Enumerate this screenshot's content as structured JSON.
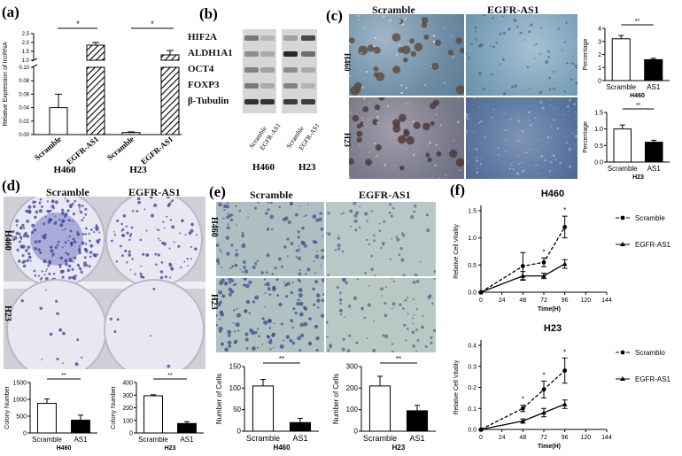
{
  "panels": {
    "a": "(a)",
    "b": "(b)",
    "c": "(c)",
    "d": "(d)",
    "e": "(e)",
    "f": "(f)"
  },
  "panel_a": {
    "ylabel": "Relative Expression of lncRNA",
    "yticks_top": [
      "1.0",
      "1.5",
      "2.0",
      "2.5"
    ],
    "yticks_bottom": [
      "0.00",
      "0.02",
      "0.04",
      "0.06",
      "0.08",
      "0.10"
    ],
    "group_labels": [
      "Scramble",
      "EGFR-AS1",
      "Scramble",
      "EGFR-AS1"
    ],
    "cell_lines": [
      "H460",
      "H23"
    ],
    "sig": [
      "*",
      "*"
    ]
  },
  "panel_b": {
    "proteins": [
      "HIF2A",
      "ALDH1A1",
      "OCT4",
      "FOXP3",
      "β-Tubulin"
    ],
    "lane_labels": [
      "Scramble",
      "EGFR-AS1",
      "Scramble",
      "EGFR-AS1"
    ],
    "cell_lines": [
      "H460",
      "H23"
    ]
  },
  "panel_c": {
    "col_headers": [
      "Scramble",
      "EGFR-AS1"
    ],
    "row_labels": [
      "H460",
      "H23"
    ],
    "chart_top": {
      "ylabel": "Percentage",
      "yticks": [
        "0",
        "1",
        "2",
        "3",
        "4"
      ],
      "categories": [
        "Scramble",
        "AS1"
      ],
      "subtitle": "H460",
      "sig": "**"
    },
    "chart_bottom": {
      "ylabel": "Percentage",
      "yticks": [
        "0.0",
        "0.5",
        "1.0",
        "1.5"
      ],
      "categories": [
        "Scramble",
        "AS1"
      ],
      "subtitle": "H23",
      "sig": "**"
    }
  },
  "panel_d": {
    "col_headers": [
      "Scramble",
      "EGFR-AS1"
    ],
    "row_labels": [
      "H460",
      "H23"
    ],
    "chart_left": {
      "ylabel": "Colony Number",
      "yticks": [
        "0",
        "500",
        "1000",
        "1500"
      ],
      "categories": [
        "Scramble",
        "AS1"
      ],
      "subtitle": "H460",
      "sig": "**"
    },
    "chart_right": {
      "ylabel": "Colony Number",
      "yticks": [
        "0",
        "100",
        "200",
        "300",
        "400"
      ],
      "categories": [
        "Scramble",
        "AS1"
      ],
      "subtitle": "H23",
      "sig": "**"
    }
  },
  "panel_e": {
    "col_headers": [
      "Scramble",
      "EGFR-AS1"
    ],
    "row_labels": [
      "H460",
      "H23"
    ],
    "chart_left": {
      "ylabel": "Number of Cells",
      "yticks": [
        "0",
        "50",
        "100",
        "150"
      ],
      "categories": [
        "Scramble",
        "AS1"
      ],
      "subtitle": "H460",
      "sig": "**"
    },
    "chart_right": {
      "ylabel": "Number of Cells",
      "yticks": [
        "0",
        "100",
        "200",
        "300"
      ],
      "categories": [
        "Scramble",
        "AS1"
      ],
      "subtitle": "H23",
      "sig": "**"
    }
  },
  "panel_f": {
    "top": {
      "title": "H460",
      "ylabel": "Relative Cell Vitality",
      "xlabel": "Time(H)",
      "yticks": [
        "0.0",
        "0.5",
        "1.0",
        "1.5"
      ],
      "xticks": [
        "0",
        "24",
        "48",
        "72",
        "96",
        "120",
        "144"
      ],
      "legend": [
        "Scramble",
        "EGFR-AS1"
      ],
      "stars": [
        "*",
        "*"
      ]
    },
    "bottom": {
      "title": "H23",
      "ylabel": "Relative Cell Vitality",
      "xlabel": "Time(H)",
      "yticks": [
        "0.0",
        "0.1",
        "0.2",
        "0.3",
        "0.4"
      ],
      "xticks": [
        "0",
        "24",
        "48",
        "72",
        "96",
        "120",
        "144"
      ],
      "legend": [
        "Scramblo",
        "EGFR-AS1"
      ],
      "stars": [
        "*",
        "*",
        "*"
      ]
    }
  },
  "chart_data": [
    {
      "type": "bar",
      "id": "a",
      "categories": [
        "Scramble",
        "EGFR-AS1",
        "Scramble",
        "EGFR-AS1"
      ],
      "groups": [
        "H460",
        "H460",
        "H23",
        "H23"
      ],
      "values": [
        0.04,
        1.85,
        0.003,
        1.3
      ],
      "errors": [
        0.02,
        0.15,
        0.001,
        0.25
      ],
      "ylabel": "Relative Expression of lncRNA",
      "broken_axis": true,
      "colors": [
        "#ffffff",
        "hatched",
        "#ffffff",
        "hatched"
      ]
    },
    {
      "type": "bar",
      "id": "c-top",
      "categories": [
        "Scramble",
        "AS1"
      ],
      "values": [
        3.2,
        1.6
      ],
      "errors": [
        0.25,
        0.1
      ],
      "ylabel": "Percentage",
      "ylim": [
        0,
        4
      ]
    },
    {
      "type": "bar",
      "id": "c-bottom",
      "categories": [
        "Scramble",
        "AS1"
      ],
      "values": [
        1.0,
        0.6
      ],
      "errors": [
        0.12,
        0.06
      ],
      "ylabel": "Percentage",
      "ylim": [
        0,
        1.5
      ]
    },
    {
      "type": "bar",
      "id": "d-left",
      "categories": [
        "Scramble",
        "AS1"
      ],
      "values": [
        880,
        380
      ],
      "errors": [
        130,
        150
      ],
      "ylabel": "Colony Number",
      "ylim": [
        0,
        1500
      ]
    },
    {
      "type": "bar",
      "id": "d-right",
      "categories": [
        "Scramble",
        "AS1"
      ],
      "values": [
        295,
        75
      ],
      "errors": [
        8,
        15
      ],
      "ylabel": "Colony Number",
      "ylim": [
        0,
        400
      ]
    },
    {
      "type": "bar",
      "id": "e-left",
      "categories": [
        "Scramble",
        "AS1"
      ],
      "values": [
        105,
        20
      ],
      "errors": [
        15,
        10
      ],
      "ylabel": "Number of Cells",
      "ylim": [
        0,
        150
      ]
    },
    {
      "type": "bar",
      "id": "e-right",
      "categories": [
        "Scramble",
        "AS1"
      ],
      "values": [
        210,
        95
      ],
      "errors": [
        45,
        25
      ],
      "ylabel": "Number of Cells",
      "ylim": [
        0,
        300
      ]
    },
    {
      "type": "line",
      "id": "f-top",
      "x": [
        0,
        48,
        72,
        96
      ],
      "series": [
        {
          "name": "Scramble",
          "values": [
            0.0,
            0.48,
            0.55,
            1.2
          ],
          "errors": [
            0,
            0.25,
            0.08,
            0.2
          ]
        },
        {
          "name": "EGFR-AS1",
          "values": [
            0.0,
            0.3,
            0.3,
            0.52
          ],
          "errors": [
            0,
            0.08,
            0.05,
            0.08
          ]
        }
      ],
      "xlabel": "Time(H)",
      "ylabel": "Relative Cell Vitality",
      "ylim": [
        0,
        1.5
      ],
      "xlim": [
        0,
        144
      ]
    },
    {
      "type": "line",
      "id": "f-bottom",
      "x": [
        0,
        48,
        72,
        96
      ],
      "series": [
        {
          "name": "Scramblo",
          "values": [
            0.0,
            0.1,
            0.19,
            0.28
          ],
          "errors": [
            0,
            0.015,
            0.04,
            0.06
          ]
        },
        {
          "name": "EGFR-AS1",
          "values": [
            0.0,
            0.04,
            0.08,
            0.12
          ],
          "errors": [
            0,
            0.01,
            0.02,
            0.02
          ]
        }
      ],
      "xlabel": "Time(H)",
      "ylabel": "Relative Cell Vitality",
      "ylim": [
        0,
        0.4
      ],
      "xlim": [
        0,
        144
      ]
    }
  ]
}
